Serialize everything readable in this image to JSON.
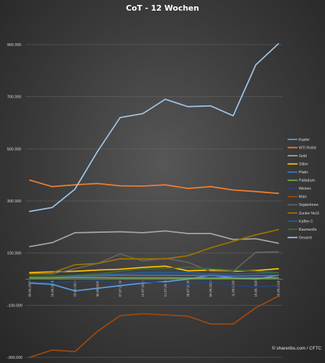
{
  "chart_data": {
    "type": "line",
    "title": "CoT - 12 Wochen",
    "credit": "© shareribs.com / CFTC",
    "ylim": [
      -500000,
      1000000
    ],
    "y_ticks": [
      {
        "value": 900000,
        "label": "900.000"
      },
      {
        "value": 700000,
        "label": "700.000"
      },
      {
        "value": 500000,
        "label": "500.000"
      },
      {
        "value": 300000,
        "label": "300.000"
      },
      {
        "value": 100000,
        "label": "100.000"
      },
      {
        "value": -100000,
        "label": "-100.000"
      },
      {
        "value": -300000,
        "label": "-300.000"
      }
    ],
    "grid": true,
    "legend_position": "right",
    "categories": [
      "09.06.2020",
      "16.06.2020",
      "23.06.2020",
      "30.06.2020",
      "07.07.2020",
      "14.07.2020",
      "21.07.2020",
      "28.07.2020",
      "04.08.2020",
      "11.08.2020",
      "18.08.2020",
      "25.08.2020"
    ],
    "series": [
      {
        "name": "Kupfer",
        "color": "#5b9bd5",
        "values": [
          -15000,
          -20000,
          -45000,
          -35000,
          -25000,
          -15000,
          -10000,
          0,
          15000,
          5000,
          0,
          15000
        ]
      },
      {
        "name": "WTI Rohöl",
        "color": "#ed7d31",
        "values": [
          380000,
          355000,
          362000,
          367000,
          358000,
          357000,
          362000,
          348000,
          355000,
          342000,
          336000,
          329000
        ]
      },
      {
        "name": "Gold",
        "color": "#a5a5a5",
        "values": [
          125000,
          140000,
          178000,
          180000,
          182000,
          178000,
          185000,
          175000,
          175000,
          152000,
          155000,
          138000
        ]
      },
      {
        "name": "Silber",
        "color": "#ffc000",
        "values": [
          25000,
          28000,
          30000,
          35000,
          38000,
          45000,
          50000,
          32000,
          35000,
          30000,
          33000,
          40000
        ]
      },
      {
        "name": "Platin",
        "color": "#4472c4",
        "values": [
          10000,
          10000,
          12000,
          14000,
          15000,
          15000,
          15000,
          14000,
          14000,
          12000,
          13000,
          15000
        ]
      },
      {
        "name": "Palladium",
        "color": "#70ad47",
        "values": [
          5000,
          5000,
          6000,
          6000,
          5000,
          5000,
          5000,
          4000,
          4000,
          4000,
          4000,
          5000
        ]
      },
      {
        "name": "Weizen",
        "color": "#264478",
        "values": [
          -10000,
          -15000,
          -10000,
          -5000,
          -20000,
          -10000,
          -15000,
          -20000,
          -10000,
          -25000,
          -30000,
          -25000
        ]
      },
      {
        "name": "Mais",
        "color": "#9e480e",
        "values": [
          -300000,
          -272000,
          -278000,
          -200000,
          -140000,
          -133000,
          -137000,
          -142000,
          -172000,
          -172000,
          -110000,
          -65000
        ]
      },
      {
        "name": "Sojabohnen",
        "color": "#636363",
        "values": [
          20000,
          20000,
          40000,
          60000,
          97000,
          70000,
          80000,
          65000,
          30000,
          30000,
          103000,
          105000
        ]
      },
      {
        "name": "Zucker No11",
        "color": "#997300",
        "values": [
          20000,
          25000,
          55000,
          60000,
          78000,
          78000,
          78000,
          90000,
          120000,
          145000,
          170000,
          190000
        ]
      },
      {
        "name": "Kaffee C",
        "color": "#255e91",
        "values": [
          10000,
          12000,
          15000,
          20000,
          20000,
          25000,
          25000,
          25000,
          20000,
          20000,
          22000,
          25000
        ]
      },
      {
        "name": "Baumwolle",
        "color": "#43682b",
        "values": [
          10000,
          10000,
          15000,
          20000,
          30000,
          40000,
          42000,
          45000,
          40000,
          35000,
          30000,
          25000
        ]
      },
      {
        "name": "Gesamt",
        "color": "#9dc3e6",
        "values": [
          260000,
          275000,
          345000,
          490000,
          620000,
          635000,
          690000,
          662000,
          665000,
          627000,
          822000,
          903000
        ]
      }
    ]
  }
}
